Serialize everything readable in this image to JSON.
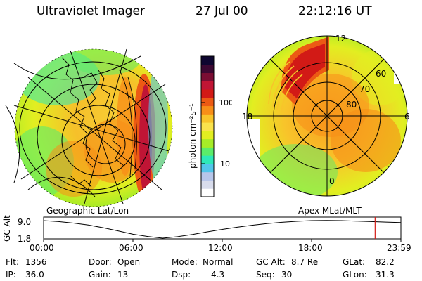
{
  "header": {
    "instrument": "Ultraviolet Imager",
    "date": "27 Jul 00",
    "time": "22:12:16 UT"
  },
  "left_panel": {
    "label": "Geographic Lat/Lon"
  },
  "right_panel": {
    "label": "Apex MLat/MLT",
    "lat_labels": [
      "60",
      "70",
      "80"
    ],
    "mlt_labels": [
      "12",
      "18",
      "6",
      "0"
    ]
  },
  "colorbar": {
    "unit_label": "photon cm⁻²s⁻¹",
    "tick_labels": [
      "100",
      "10"
    ],
    "colors": [
      "#ffffff",
      "#d8dcec",
      "#b7c6ea",
      "#52c6ea",
      "#2ee8b8",
      "#5bec6a",
      "#a6ec27",
      "#e2ee21",
      "#fae34c",
      "#f8c42a",
      "#f78e18",
      "#ec5a14",
      "#d21a16",
      "#c01535",
      "#7a0d33",
      "#3c0832",
      "#0e0630"
    ]
  },
  "altitude_plot": {
    "ylabel": "GC Alt",
    "y_ticks": [
      "9.0",
      "1.8"
    ],
    "x_ticks": [
      "00:00",
      "06:00",
      "12:00",
      "18:00",
      "23:59"
    ],
    "current_time_fraction": 0.9278,
    "orbit_curve": [
      [
        0,
        9.0
      ],
      [
        1,
        8.6
      ],
      [
        2,
        8.0
      ],
      [
        3,
        7.2
      ],
      [
        4,
        6.1
      ],
      [
        5,
        4.8
      ],
      [
        6,
        3.4
      ],
      [
        7,
        2.5
      ],
      [
        8,
        1.8
      ],
      [
        9,
        2.4
      ],
      [
        10,
        3.3
      ],
      [
        11,
        4.4
      ],
      [
        12,
        5.4
      ],
      [
        13,
        6.3
      ],
      [
        14,
        7.1
      ],
      [
        15,
        7.8
      ],
      [
        16,
        8.3
      ],
      [
        17,
        8.7
      ],
      [
        18,
        9.0
      ],
      [
        19,
        9.1
      ],
      [
        20,
        9.0
      ],
      [
        21,
        8.8
      ],
      [
        22,
        8.6
      ],
      [
        23,
        8.4
      ],
      [
        23.98,
        8.2
      ]
    ]
  },
  "info": {
    "flt_label": "Flt:",
    "flt_value": "1356",
    "ip_label": "IP:",
    "ip_value": "36.0",
    "door_label": "Door:",
    "door_value": "Open",
    "gain_label": "Gain:",
    "gain_value": "13",
    "mode_label": "Mode:",
    "mode_value": "Normal",
    "dsp_label": "Dsp:",
    "dsp_value": "4.3",
    "gcalt_label": "GC Alt:",
    "gcalt_value": "8.7 Re",
    "seq_label": "Seq:",
    "seq_value": "30",
    "glat_label": "GLat:",
    "glat_value": "82.2",
    "glon_label": "GLon:",
    "glon_value": "31.3"
  }
}
